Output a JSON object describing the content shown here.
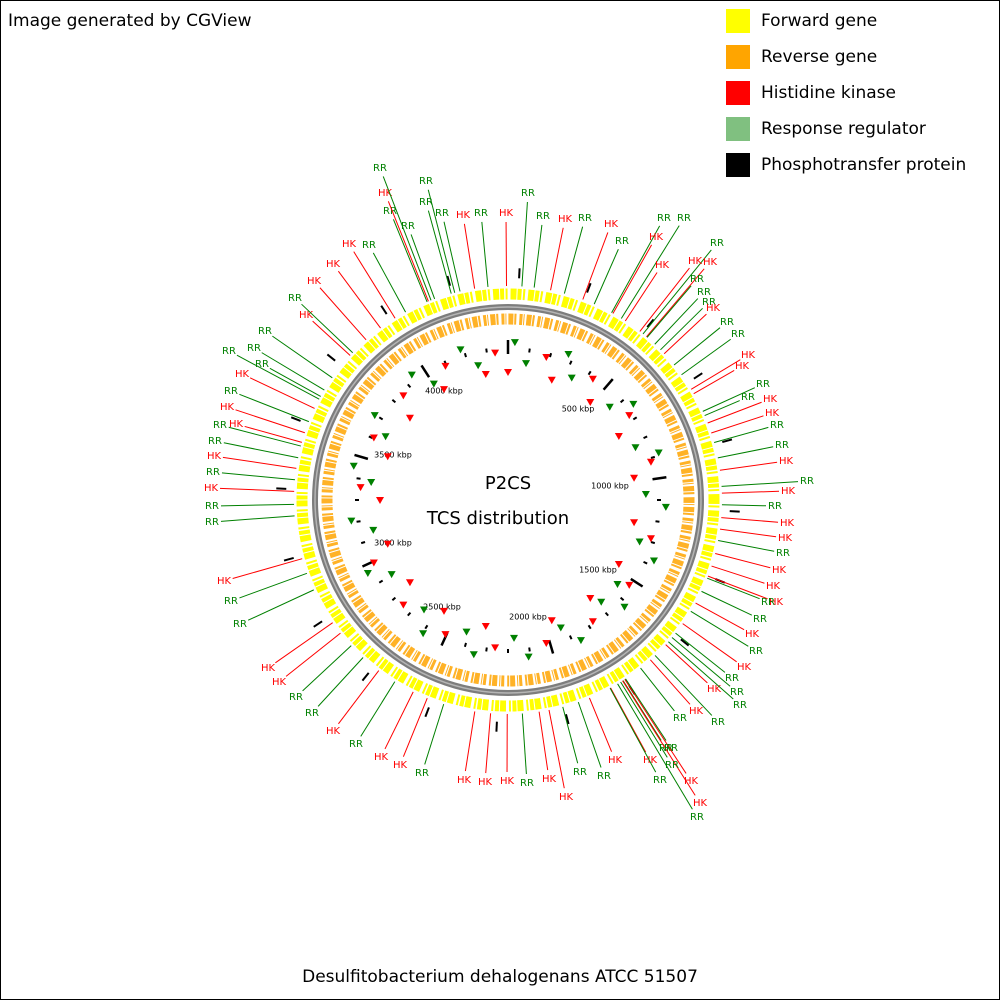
{
  "header": {
    "credit": "Image generated by CGView"
  },
  "legend": [
    "Forward gene",
    "Reverse gene",
    "Histidine kinase",
    "Response regulator",
    "Phosphotransfer protein"
  ],
  "center": {
    "line1": "P2CS",
    "line2": "TCS distribution"
  },
  "scale_labels": [
    "4000 kbp",
    "500 kbp",
    "3500 kbp",
    "1000 kbp",
    "3000 kbp",
    "1500 kbp",
    "2500 kbp",
    "2000 kbp"
  ],
  "footer": {
    "organism": "Desulfitobacterium dehalogenans ATCC 51507"
  },
  "feature_labels": [
    "RR",
    "RR",
    "HK",
    "HK",
    "RR",
    "HK",
    "RR",
    "RR",
    "RR",
    "HK",
    "HK",
    "RR",
    "HK",
    "HK",
    "RR",
    "RR",
    "RR",
    "HK",
    "RR",
    "RR",
    "HK",
    "HK",
    "RR",
    "RR",
    "HK",
    "HK",
    "RR",
    "RR",
    "HK",
    "RR",
    "HK",
    "RR",
    "HK",
    "HK",
    "RR",
    "HK",
    "HK",
    "HK",
    "RR",
    "RR",
    "HK",
    "RR",
    "HK",
    "RR",
    "HK",
    "RR",
    "RR",
    "HK",
    "RR",
    "RR",
    "RR",
    "HK",
    "HK",
    "RR",
    "RR",
    "HK",
    "HK",
    "RR",
    "RR",
    "HK",
    "HK",
    "RR",
    "HK",
    "HK",
    "HK",
    "RR",
    "HK",
    "HK",
    "RR",
    "HK",
    "RR",
    "RR",
    "HK",
    "HK",
    "RR",
    "RR",
    "HK",
    "RR",
    "RR",
    "HK",
    "RR",
    "HK",
    "RR",
    "RR",
    "HK",
    "HK",
    "RR",
    "HK",
    "RR",
    "RR",
    "RR",
    "RR",
    "HK",
    "RR",
    "HK",
    "HK",
    "RR",
    "HK",
    "RR",
    "HK",
    "RR",
    "RR",
    "RR",
    "RR",
    "HK",
    "RR",
    "RR",
    "RR",
    "RR"
  ]
}
